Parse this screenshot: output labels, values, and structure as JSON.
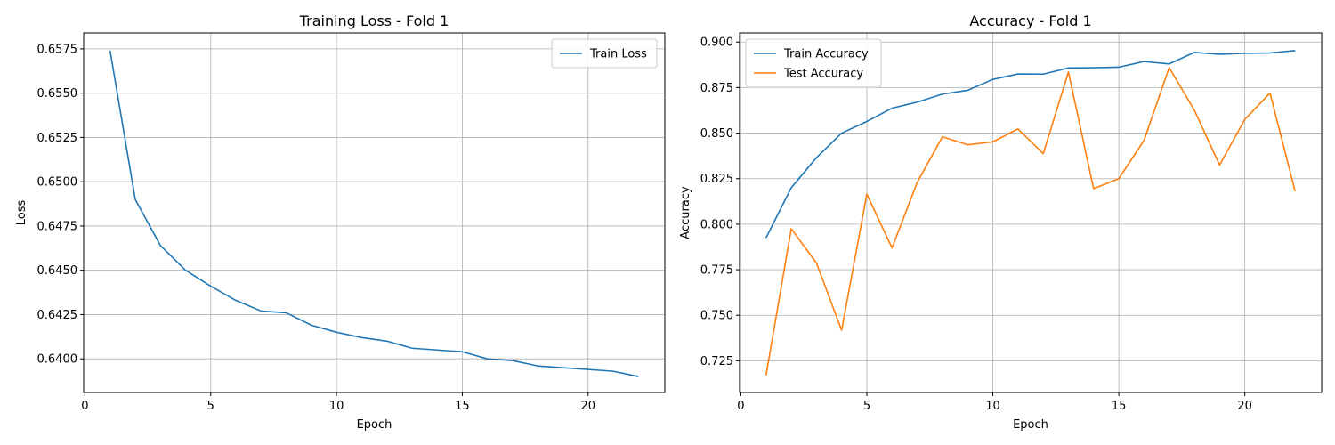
{
  "chart_data": [
    {
      "type": "line",
      "title": "Training Loss - Fold 1",
      "xlabel": "Epoch",
      "ylabel": "Loss",
      "xlim": [
        -0.05,
        23.05
      ],
      "ylim": [
        0.6381,
        0.6584
      ],
      "xticks": [
        0,
        5,
        10,
        15,
        20
      ],
      "yticks": [
        0.64,
        0.6425,
        0.645,
        0.6475,
        0.65,
        0.6525,
        0.655,
        0.6575
      ],
      "ytick_labels": [
        "0.6400",
        "0.6425",
        "0.6450",
        "0.6475",
        "0.6500",
        "0.6525",
        "0.6550",
        "0.6575"
      ],
      "grid": true,
      "legend_position": "upper right",
      "x": [
        1,
        2,
        3,
        4,
        5,
        6,
        7,
        8,
        9,
        10,
        11,
        12,
        13,
        14,
        15,
        16,
        17,
        18,
        19,
        20,
        21,
        22
      ],
      "series": [
        {
          "name": "Train Loss",
          "color": "#1f77b4",
          "values": [
            0.6574,
            0.649,
            0.6464,
            0.645,
            0.6441,
            0.6433,
            0.6427,
            0.6426,
            0.6419,
            0.6415,
            0.6412,
            0.641,
            0.6406,
            0.6405,
            0.6404,
            0.64,
            0.6399,
            0.6396,
            0.6395,
            0.6394,
            0.6393,
            0.639
          ]
        }
      ]
    },
    {
      "type": "line",
      "title": "Accuracy - Fold 1",
      "xlabel": "Epoch",
      "ylabel": "Accuracy",
      "xlim": [
        -0.05,
        23.05
      ],
      "ylim": [
        0.7076,
        0.905
      ],
      "xticks": [
        0,
        5,
        10,
        15,
        20
      ],
      "yticks": [
        0.725,
        0.75,
        0.775,
        0.8,
        0.825,
        0.85,
        0.875,
        0.9
      ],
      "ytick_labels": [
        "0.725",
        "0.750",
        "0.775",
        "0.800",
        "0.825",
        "0.850",
        "0.875",
        "0.900"
      ],
      "grid": true,
      "legend_position": "upper left",
      "x": [
        1,
        2,
        3,
        4,
        5,
        6,
        7,
        8,
        9,
        10,
        11,
        12,
        13,
        14,
        15,
        16,
        17,
        18,
        19,
        20,
        21,
        22
      ],
      "series": [
        {
          "name": "Train Accuracy",
          "color": "#1f77b4",
          "values": [
            0.7925,
            0.82,
            0.8365,
            0.85,
            0.8564,
            0.8637,
            0.867,
            0.8714,
            0.8735,
            0.8795,
            0.8825,
            0.8824,
            0.8858,
            0.8859,
            0.8862,
            0.8893,
            0.888,
            0.8943,
            0.8933,
            0.8938,
            0.894,
            0.8953
          ]
        },
        {
          "name": "Test Accuracy",
          "color": "#ff7f0e",
          "values": [
            0.717,
            0.7975,
            0.7787,
            0.7418,
            0.8165,
            0.787,
            0.823,
            0.848,
            0.8436,
            0.8452,
            0.8523,
            0.8387,
            0.8835,
            0.8195,
            0.825,
            0.846,
            0.886,
            0.8625,
            0.8325,
            0.8575,
            0.872,
            0.818
          ]
        }
      ]
    }
  ]
}
